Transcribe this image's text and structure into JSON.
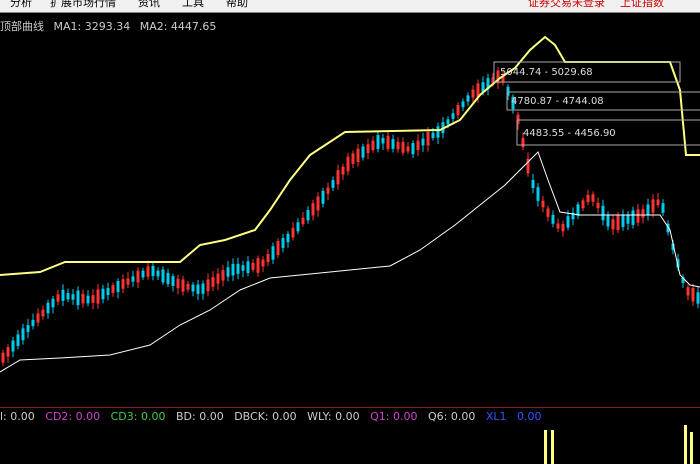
{
  "menu": {
    "items": [
      "分析",
      "扩展市场行情",
      "资讯",
      "工具",
      "帮助"
    ],
    "status_left": "证券交易未登录",
    "status_right": "上证指数"
  },
  "indicator": {
    "name": "顶部曲线",
    "ma1": "MA1: 3293.34",
    "ma2": "MA2: 4447.65"
  },
  "price_boxes": [
    {
      "label": "5044.74 - 5029.68"
    },
    {
      "label": "4780.87 - 4744.08"
    },
    {
      "label": "4483.55 - 4456.90"
    }
  ],
  "sub_indicators": [
    {
      "label": "l: 0.00",
      "color": "#cccccc"
    },
    {
      "label": "CD2: 0.00",
      "color": "#cc44cc"
    },
    {
      "label": "CD3: 0.00",
      "color": "#44cc44"
    },
    {
      "label": "BD: 0.00",
      "color": "#cccccc"
    },
    {
      "label": "DBCK: 0.00",
      "color": "#cccccc"
    },
    {
      "label": "WLY: 0.00",
      "color": "#cccccc"
    },
    {
      "label": "Q1: 0.00",
      "color": "#cc44cc"
    },
    {
      "label": "Q6: 0.00",
      "color": "#cccccc"
    },
    {
      "label": "XL1",
      "color": "#3355ff"
    },
    {
      "label": "0.00",
      "color": "#3355ff"
    }
  ],
  "colors": {
    "up_candle": "#ff3333",
    "down_candle": "#00ccee",
    "ma1_line": "#ffffff",
    "ma2_line": "#ffff80",
    "background": "#000000"
  }
}
